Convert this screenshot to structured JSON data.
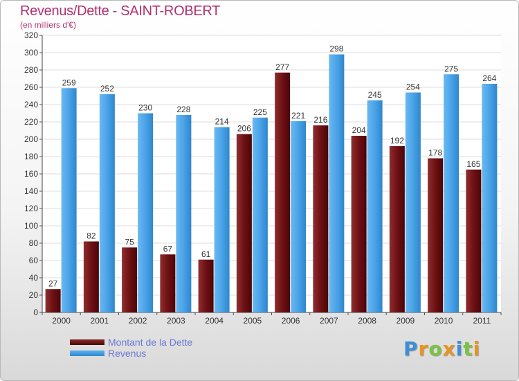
{
  "chart_data": {
    "type": "bar",
    "title": "Revenus/Dette - SAINT-ROBERT",
    "subtitle": "(en milliers d'€)",
    "categories": [
      "2000",
      "2001",
      "2002",
      "2003",
      "2004",
      "2005",
      "2006",
      "2007",
      "2008",
      "2009",
      "2010",
      "2011"
    ],
    "series": [
      {
        "name": "Montant de la Dette",
        "color": "#6e1014",
        "values": [
          27,
          82,
          75,
          67,
          61,
          206,
          277,
          216,
          204,
          192,
          178,
          165
        ]
      },
      {
        "name": "Revenus",
        "color": "#4aa3e8",
        "values": [
          259,
          252,
          230,
          228,
          214,
          225,
          221,
          298,
          245,
          254,
          275,
          264
        ]
      }
    ],
    "ylim": [
      0,
      320
    ],
    "yticks": [
      0,
      20,
      40,
      60,
      80,
      100,
      120,
      140,
      160,
      180,
      200,
      220,
      240,
      260,
      280,
      300,
      320
    ],
    "grid": true,
    "legend": "bottom-left"
  },
  "brand": {
    "letters": [
      "P",
      "r",
      "o",
      "x",
      "i",
      "t",
      "i"
    ],
    "colors": [
      "#3c8fd6",
      "#e8941f",
      "#7cc242",
      "#e8941f",
      "#3c8fd6",
      "#7cc242",
      "#e8941f"
    ]
  }
}
